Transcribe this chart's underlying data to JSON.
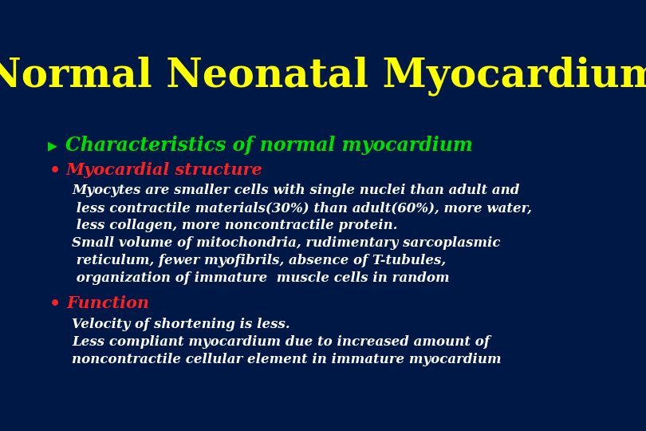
{
  "title": "Normal Neonatal Myocardium",
  "title_color": "#ffff00",
  "background_color": "#001845",
  "heading_color": "#00dd00",
  "bullet_color": "#ff2020",
  "body_color": "#ffffff",
  "heading": "Characteristics of normal myocardium",
  "bullet1": "Myocardial structure",
  "bullet1_body": [
    "Myocytes are smaller cells with single nuclei than adult and",
    " less contractile materials(30%) than adult(60%), more water,",
    " less collagen, more noncontractile protein.",
    "Small volume of mitochondria, rudimentary sarcoplasmic",
    " reticulum, fewer myofibrils, absence of T-tubules,",
    " organization of immature  muscle cells in random"
  ],
  "bullet2": "Function",
  "bullet2_body": [
    "Velocity of shortening is less.",
    "Less compliant myocardium due to increased amount of",
    "noncontractile cellular element in immature myocardium"
  ]
}
